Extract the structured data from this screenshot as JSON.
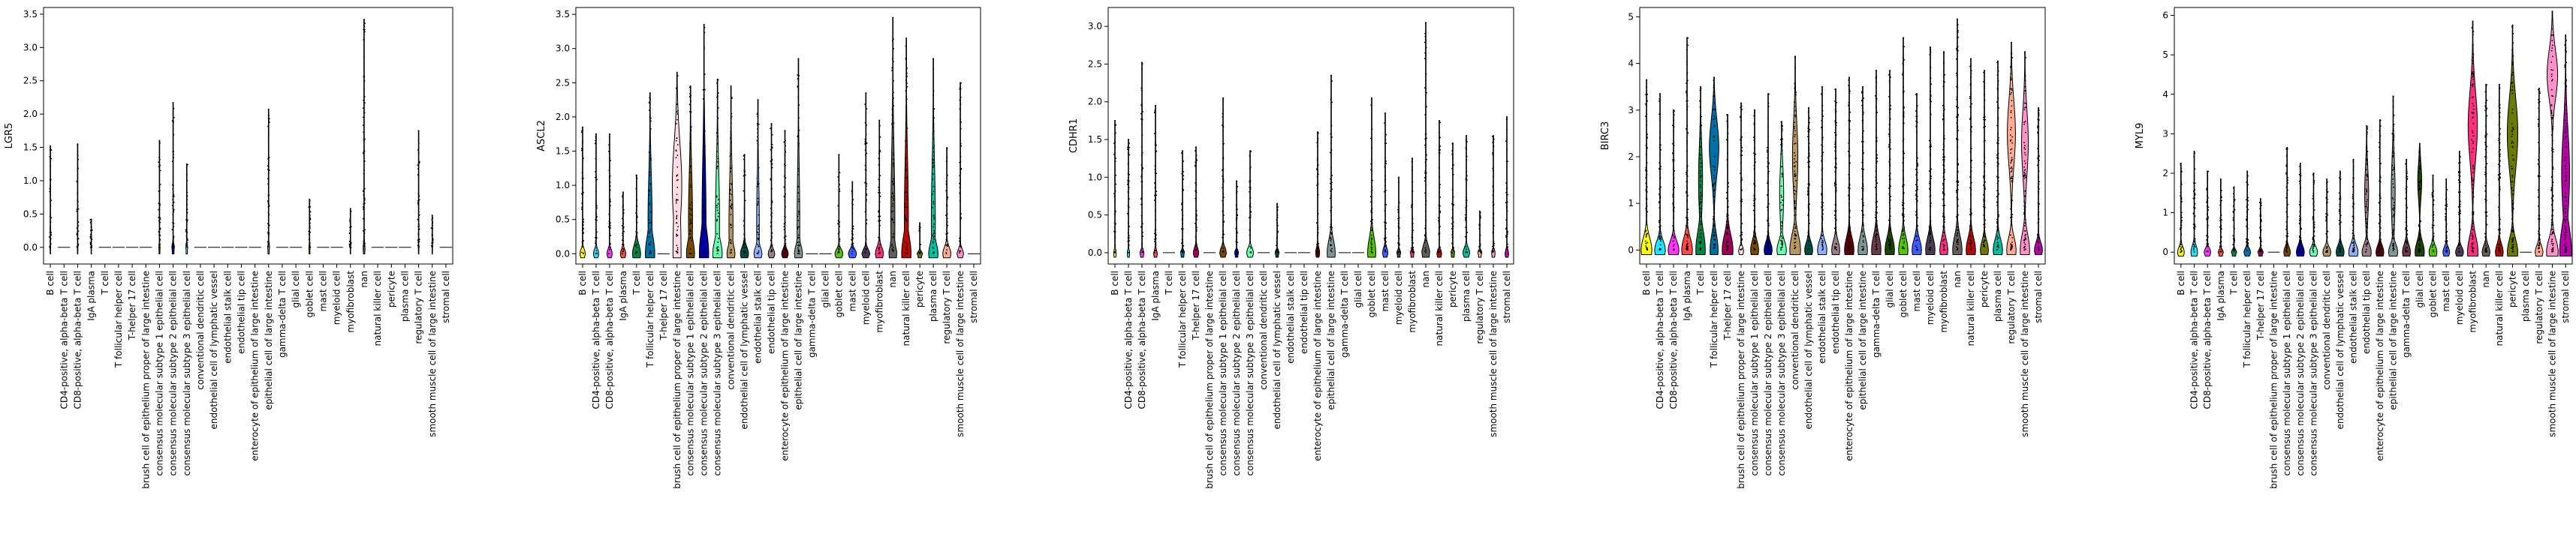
{
  "chart_data": {
    "type": "violin",
    "categories": [
      "B cell",
      "CD4-positive, alpha-beta T cell",
      "CD8-positive, alpha-beta T cell",
      "IgA plasma",
      "T cell",
      "T follicular helper cell",
      "T-helper 17 cell",
      "brush cell of epithelium proper of large intestine",
      "consensus molecular subtype 1 epithelial cell",
      "consensus molecular subtype 2 epithelial cell",
      "consensus molecular subtype 3 epithelial cell",
      "conventional dendritic cell",
      "endothelial cell of lymphatic vessel",
      "endothelial stalk cell",
      "endothelial tip cell",
      "enterocyte of epithelium of large intestine",
      "epithelial cell of large intestine",
      "gamma-delta T cell",
      "glial cell",
      "goblet cell",
      "mast cell",
      "myeloid cell",
      "myofibroblast",
      "nan",
      "natural killer cell",
      "pericyte",
      "plasma cell",
      "regulatory T cell",
      "smooth muscle cell of large intestine",
      "stromal cell"
    ],
    "colors": [
      "#ffff00",
      "#1ce6ff",
      "#ff34ff",
      "#ff4a46",
      "#008941",
      "#006fa6",
      "#a30059",
      "#ffdbe5",
      "#7a4900",
      "#0000a6",
      "#63ffac",
      "#b79762",
      "#004d43",
      "#8fb0ff",
      "#997d87",
      "#5a0007",
      "#809693",
      "#6a3a4c",
      "#1b4400",
      "#4fc601",
      "#3b5dff",
      "#4a3b53",
      "#ff2f80",
      "#61615a",
      "#ba0900",
      "#6b7900",
      "#00c2a0",
      "#ffaa92",
      "#ff90c9",
      "#b903aa"
    ],
    "panels": [
      {
        "gene": "LGR5",
        "ylim": [
          -0.25,
          3.6
        ],
        "yticks": [
          "0.0",
          "0.5",
          "1.0",
          "1.5",
          "2.0",
          "2.5",
          "3.0",
          "3.5"
        ],
        "max": [
          1.52,
          0.0,
          1.55,
          0.42,
          0.0,
          0.0,
          0.0,
          0.0,
          1.6,
          2.17,
          1.25,
          0.0,
          0.0,
          0.0,
          0.0,
          0.0,
          2.07,
          0.0,
          0.0,
          0.72,
          0.0,
          0.0,
          0.58,
          3.42,
          0.0,
          0.0,
          0.0,
          1.75,
          0.48,
          0.0
        ],
        "bulge_height": [
          0.05,
          0.0,
          0.05,
          0.05,
          0.0,
          0.0,
          0.0,
          0.0,
          0.05,
          0.08,
          0.05,
          0.0,
          0.0,
          0.0,
          0.0,
          0.0,
          0.07,
          0.0,
          0.0,
          0.05,
          0.0,
          0.0,
          0.05,
          0.1,
          0.0,
          0.0,
          0.0,
          0.05,
          0.05,
          0.0
        ],
        "bulge_width": [
          0.05,
          0.0,
          0.05,
          0.05,
          0.0,
          0.0,
          0.0,
          0.0,
          0.1,
          0.2,
          0.15,
          0.0,
          0.0,
          0.0,
          0.0,
          0.0,
          0.15,
          0.0,
          0.0,
          0.1,
          0.0,
          0.0,
          0.05,
          0.15,
          0.0,
          0.0,
          0.0,
          0.05,
          0.05,
          0.0
        ],
        "upper_width": [
          0,
          0,
          0,
          0,
          0,
          0,
          0,
          0,
          0,
          0,
          0,
          0,
          0,
          0,
          0,
          0,
          0,
          0,
          0,
          0,
          0,
          0,
          0,
          0,
          0,
          0,
          0,
          0,
          0,
          0
        ],
        "upper_center": [
          0,
          0,
          0,
          0,
          0,
          0,
          0,
          0,
          0,
          0,
          0,
          0,
          0,
          0,
          0,
          0,
          0,
          0,
          0,
          0,
          0,
          0,
          0,
          0,
          0,
          0,
          0,
          0,
          0,
          0
        ]
      },
      {
        "gene": "ASCL2",
        "ylim": [
          -0.15,
          3.6
        ],
        "yticks": [
          "0.0",
          "0.5",
          "1.0",
          "1.5",
          "2.0",
          "2.5",
          "3.0",
          "3.5"
        ],
        "max": [
          1.85,
          1.75,
          1.75,
          0.9,
          1.15,
          2.35,
          0.0,
          2.65,
          2.45,
          3.35,
          2.55,
          2.45,
          1.45,
          2.25,
          1.9,
          1.8,
          2.85,
          0.0,
          0.0,
          1.45,
          1.05,
          2.35,
          1.95,
          3.45,
          3.15,
          0.45,
          2.85,
          1.55,
          2.5,
          0.0
        ],
        "bulge_height": [
          0.1,
          0.1,
          0.1,
          0.1,
          0.2,
          0.4,
          0.0,
          1.5,
          0.3,
          0.5,
          0.3,
          0.2,
          0.15,
          0.15,
          0.1,
          0.1,
          0.2,
          0.0,
          0.0,
          0.1,
          0.1,
          0.1,
          0.15,
          0.2,
          0.4,
          0.05,
          0.25,
          0.15,
          0.1,
          0.0
        ],
        "bulge_width": [
          0.4,
          0.4,
          0.4,
          0.4,
          0.6,
          0.7,
          0.0,
          0.6,
          0.6,
          0.7,
          0.7,
          0.6,
          0.6,
          0.6,
          0.5,
          0.5,
          0.6,
          0.0,
          0.0,
          0.6,
          0.6,
          0.6,
          0.6,
          0.6,
          0.7,
          0.4,
          0.7,
          0.6,
          0.5,
          0.0
        ],
        "upper_width": [
          0,
          0,
          0,
          0,
          0,
          0.3,
          0,
          0.7,
          0.3,
          0.3,
          0.3,
          0.3,
          0,
          0.2,
          0,
          0,
          0.2,
          0,
          0,
          0,
          0,
          0,
          0,
          0.3,
          0.3,
          0,
          0.3,
          0,
          0,
          0
        ],
        "upper_center": [
          0,
          0,
          0,
          0,
          0,
          0.5,
          0,
          1.0,
          0.5,
          0.5,
          0.5,
          0.4,
          0,
          0.4,
          0,
          0,
          0.4,
          0,
          0,
          0,
          0,
          0,
          0,
          0.5,
          0.5,
          0,
          0.5,
          0,
          0,
          0
        ]
      },
      {
        "gene": "CDHR1",
        "ylim": [
          -0.15,
          3.25
        ],
        "yticks": [
          "0.0",
          "0.5",
          "1.0",
          "1.5",
          "2.0",
          "2.5",
          "3.0"
        ],
        "max": [
          1.75,
          1.5,
          2.52,
          1.95,
          0.0,
          1.35,
          1.4,
          0.0,
          2.05,
          0.95,
          1.35,
          0.0,
          0.65,
          0.0,
          0.0,
          1.6,
          2.35,
          0.0,
          0.0,
          2.05,
          1.85,
          1.0,
          1.25,
          3.05,
          1.75,
          1.45,
          1.55,
          0.55,
          1.55,
          1.8
        ],
        "bulge_height": [
          0.05,
          0.05,
          0.05,
          0.05,
          0.0,
          0.05,
          0.1,
          0.0,
          0.1,
          0.05,
          0.1,
          0.0,
          0.05,
          0.0,
          0.0,
          0.1,
          0.25,
          0.0,
          0.0,
          0.3,
          0.1,
          0.05,
          0.05,
          0.15,
          0.05,
          0.05,
          0.1,
          0.05,
          0.05,
          0.05
        ],
        "bulge_width": [
          0.2,
          0.2,
          0.3,
          0.3,
          0.0,
          0.3,
          0.4,
          0.0,
          0.5,
          0.3,
          0.5,
          0.0,
          0.3,
          0.0,
          0.0,
          0.3,
          0.6,
          0.0,
          0.0,
          0.6,
          0.4,
          0.3,
          0.3,
          0.6,
          0.4,
          0.3,
          0.5,
          0.3,
          0.3,
          0.3
        ],
        "upper_width": [
          0,
          0,
          0,
          0,
          0,
          0,
          0,
          0,
          0,
          0,
          0,
          0,
          0,
          0,
          0,
          0,
          0,
          0,
          0,
          0,
          0,
          0,
          0,
          0,
          0,
          0,
          0,
          0,
          0,
          0
        ],
        "upper_center": [
          0,
          0,
          0,
          0,
          0,
          0,
          0,
          0,
          0,
          0,
          0,
          0,
          0,
          0,
          0,
          0,
          0,
          0,
          0,
          0,
          0,
          0,
          0,
          0,
          0,
          0,
          0,
          0,
          0,
          0
        ]
      },
      {
        "gene": "BIRC3",
        "ylim": [
          -0.3,
          5.2
        ],
        "yticks": [
          "0",
          "1",
          "2",
          "3",
          "4",
          "5"
        ],
        "max": [
          3.65,
          3.35,
          3.0,
          4.55,
          3.5,
          3.7,
          2.9,
          3.15,
          3.0,
          3.35,
          2.75,
          4.15,
          3.05,
          3.5,
          3.45,
          3.7,
          3.5,
          3.85,
          3.85,
          4.55,
          3.35,
          4.35,
          4.25,
          4.95,
          4.1,
          3.85,
          4.05,
          4.45,
          4.25,
          3.05
        ],
        "bulge_height": [
          0.4,
          0.3,
          0.3,
          0.4,
          0.6,
          0.5,
          0.5,
          0.1,
          0.3,
          0.25,
          0.3,
          0.5,
          0.25,
          0.3,
          0.3,
          0.4,
          0.4,
          0.45,
          0.4,
          0.4,
          0.35,
          0.4,
          0.35,
          0.45,
          0.4,
          0.3,
          0.35,
          0.4,
          0.5,
          0.25
        ],
        "bulge_width": [
          0.8,
          0.8,
          0.8,
          0.8,
          0.7,
          0.6,
          0.8,
          0.4,
          0.6,
          0.6,
          0.7,
          0.8,
          0.6,
          0.7,
          0.6,
          0.7,
          0.7,
          0.7,
          0.7,
          0.7,
          0.7,
          0.7,
          0.6,
          0.7,
          0.7,
          0.6,
          0.7,
          0.7,
          0.7,
          0.6
        ],
        "upper_width": [
          0,
          0,
          0,
          0,
          0.3,
          0.7,
          0,
          0,
          0,
          0,
          0.3,
          0.4,
          0,
          0,
          0,
          0,
          0,
          0,
          0,
          0,
          0,
          0,
          0,
          0,
          0,
          0,
          0,
          0.6,
          0.5,
          0
        ],
        "upper_center": [
          0,
          0,
          0,
          0,
          1.5,
          2.2,
          0,
          0,
          0,
          0,
          1.2,
          2.0,
          0,
          0,
          0,
          0,
          0,
          0,
          0,
          0,
          0,
          0,
          0,
          0,
          0,
          0,
          0,
          2.5,
          2.3,
          0
        ]
      },
      {
        "gene": "MYL9",
        "ylim": [
          -0.3,
          6.2
        ],
        "yticks": [
          "0",
          "1",
          "2",
          "3",
          "4",
          "5",
          "6"
        ],
        "max": [
          2.25,
          2.55,
          2.05,
          1.85,
          1.65,
          2.05,
          1.35,
          0.0,
          2.65,
          2.25,
          2.0,
          1.85,
          2.05,
          2.35,
          3.2,
          3.35,
          3.95,
          2.35,
          2.75,
          1.95,
          1.85,
          2.55,
          5.85,
          4.25,
          4.25,
          5.75,
          0.0,
          4.15,
          6.1,
          5.5
        ],
        "bulge_height": [
          0.2,
          0.25,
          0.15,
          0.1,
          0.1,
          0.15,
          0.1,
          0.0,
          0.2,
          0.25,
          0.2,
          0.2,
          0.25,
          0.3,
          0.3,
          0.25,
          0.3,
          0.3,
          0.4,
          0.25,
          0.2,
          0.2,
          0.6,
          0.25,
          0.3,
          0.5,
          0.0,
          0.25,
          0.5,
          1.0
        ],
        "bulge_width": [
          0.5,
          0.5,
          0.5,
          0.4,
          0.4,
          0.5,
          0.4,
          0.0,
          0.5,
          0.6,
          0.6,
          0.6,
          0.6,
          0.7,
          0.7,
          0.6,
          0.7,
          0.6,
          0.7,
          0.6,
          0.5,
          0.6,
          0.8,
          0.6,
          0.6,
          0.8,
          0.0,
          0.6,
          0.9,
          0.9
        ],
        "upper_width": [
          0,
          0,
          0,
          0,
          0,
          0,
          0,
          0,
          0,
          0,
          0,
          0,
          0,
          0,
          0.3,
          0,
          0.3,
          0,
          0.3,
          0,
          0,
          0,
          0.7,
          0,
          0,
          0.8,
          0,
          0,
          0.8,
          0.6
        ],
        "upper_center": [
          0,
          0,
          0,
          0,
          0,
          0,
          0,
          0,
          0,
          0,
          0,
          0,
          0,
          0,
          1.5,
          0,
          1.5,
          0,
          1.8,
          0,
          0,
          0,
          3.2,
          0,
          0,
          3.0,
          0,
          0,
          4.5,
          2.0
        ]
      }
    ]
  }
}
